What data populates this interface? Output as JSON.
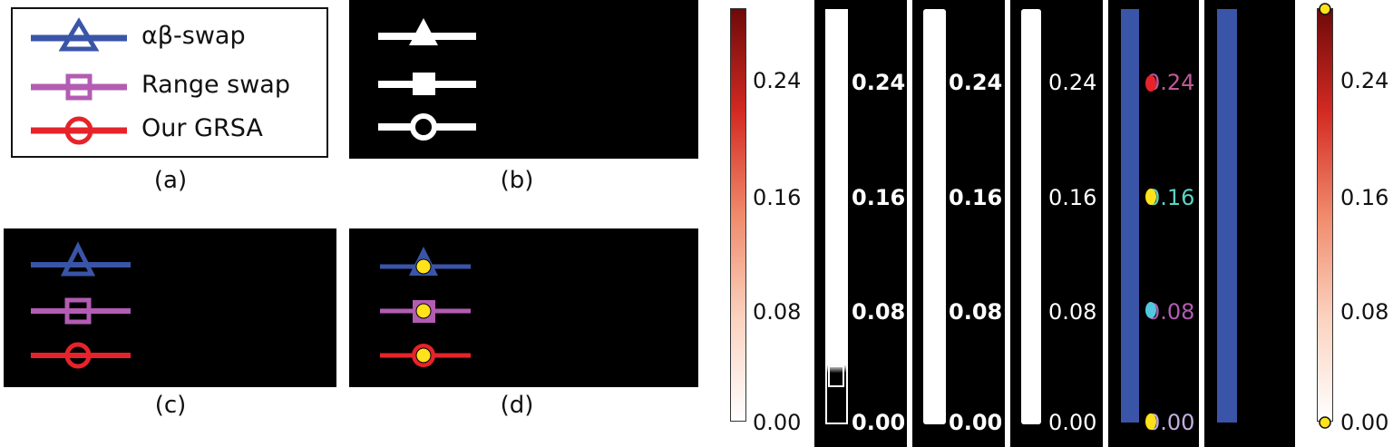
{
  "legend": {
    "items": [
      {
        "label": "αβ-swap",
        "color": "#3a55a8",
        "marker": "triangle"
      },
      {
        "label": "Range swap",
        "color": "#b35cb3",
        "marker": "square"
      },
      {
        "label": "Our GRSA",
        "color": "#e6232a",
        "marker": "circle"
      }
    ]
  },
  "captions": {
    "a": "(a)",
    "b": "(b)",
    "c": "(c)",
    "d": "(d)"
  },
  "colors": {
    "background": "#000000",
    "white": "#ffffff",
    "yellow": "#ffe21a",
    "blue_bar": "#3a55a8"
  },
  "colorbar": {
    "ticks": [
      "0.24",
      "0.16",
      "0.08",
      "0.00"
    ],
    "gradient": [
      "#ffffff",
      "#fbd2bf",
      "#f08a6b",
      "#d32a22",
      "#6e0a0a"
    ]
  },
  "strips": {
    "ticks": [
      "0.24",
      "0.16",
      "0.08",
      "0.00"
    ],
    "strip5_dots_016": [
      "#ffe21a",
      "#5fd3c2",
      "#3a55a8"
    ],
    "strip5_dots_008": [
      "#52c8e0",
      "#b35cb3",
      "#1a7a3a"
    ],
    "strip5_dots_000": [
      "#ffe21a",
      "#3a78d0",
      "#c2b0e0"
    ]
  }
}
